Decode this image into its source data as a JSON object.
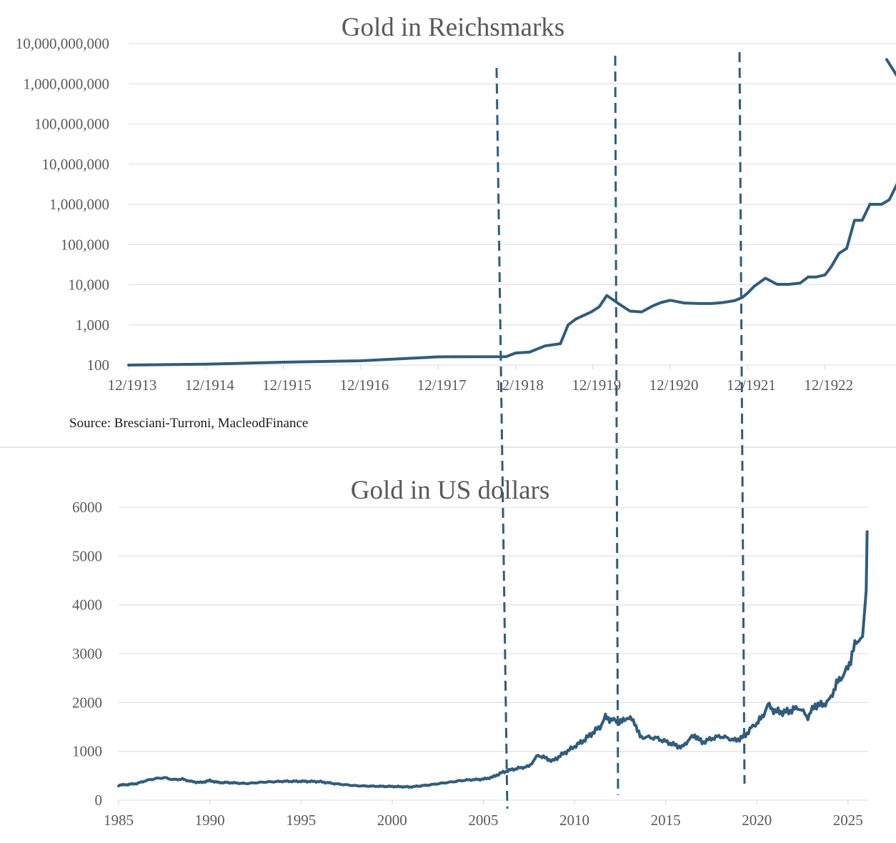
{
  "chart_data": [
    {
      "type": "line",
      "title": "Gold in Reichsmarks",
      "xlabel": "",
      "ylabel": "",
      "yscale": "log",
      "ylim": [
        100,
        10000000000
      ],
      "grid": true,
      "y_ticks": [
        "100",
        "1,000",
        "10,000",
        "100,000",
        "1,000,000",
        "10,000,000",
        "100,000,000",
        "1,000,000,000",
        "10,000,000,000"
      ],
      "x_ticks": [
        "12/1913",
        "12/1914",
        "12/1915",
        "12/1916",
        "12/1917",
        "12/1918",
        "12/1919",
        "12/1920",
        "12/1921",
        "12/1922"
      ],
      "source": "Source: Bresciani-Turroni, MacleodFinance",
      "series": [
        {
          "name": "Gold price in Reichsmarks",
          "color": "#2e5d7e",
          "x": [
            1913.92,
            1914.92,
            1915.92,
            1916.92,
            1917.92,
            1918.8,
            1918.92,
            1919.1,
            1919.3,
            1919.5,
            1919.6,
            1919.7,
            1919.9,
            1920.0,
            1920.1,
            1920.25,
            1920.4,
            1920.55,
            1920.7,
            1920.8,
            1920.92,
            1921.1,
            1921.3,
            1921.45,
            1921.6,
            1921.75,
            1921.85,
            1921.92,
            1922.0,
            1922.15,
            1922.3,
            1922.45,
            1922.6,
            1922.7,
            1922.8,
            1922.92,
            1923.0,
            1923.1,
            1923.2,
            1923.3,
            1923.4,
            1923.5,
            1923.65,
            1923.75,
            1923.92
          ],
          "values": [
            100,
            105,
            118,
            128,
            160,
            162,
            200,
            210,
            300,
            340,
            1000,
            1400,
            2100,
            2800,
            5400,
            3400,
            2200,
            2100,
            3000,
            3600,
            4100,
            3500,
            3400,
            3400,
            3600,
            4000,
            4800,
            6200,
            9000,
            14500,
            10200,
            10200,
            11000,
            15500,
            15500,
            17500,
            28000,
            60000,
            80000,
            400000,
            400000,
            1000000,
            1000000,
            1300000,
            6000000
          ]
        }
      ],
      "annotations": [
        "vertical dashed line near 10/1918",
        "vertical dashed line near 2/1920",
        "vertical dashed line near 11/1921"
      ]
    },
    {
      "type": "line",
      "title": "Gold in US dollars",
      "xlabel": "",
      "ylabel": "",
      "ylim": [
        0,
        6000
      ],
      "xlim": [
        1985,
        2026
      ],
      "grid": true,
      "y_ticks": [
        "0",
        "1000",
        "2000",
        "3000",
        "4000",
        "5000",
        "6000"
      ],
      "x_ticks": [
        "1985",
        "1990",
        "1995",
        "2000",
        "2005",
        "2010",
        "2015",
        "2020",
        "2025"
      ],
      "series": [
        {
          "name": "Gold price in US dollars",
          "color": "#2e5d7e",
          "x": [
            1985.0,
            1985.5,
            1986.0,
            1986.5,
            1987.0,
            1987.5,
            1988.0,
            1988.5,
            1989.0,
            1989.5,
            1990.0,
            1990.5,
            1991.0,
            1992.0,
            1993.0,
            1994.0,
            1995.0,
            1996.0,
            1997.0,
            1998.0,
            1999.0,
            2000.0,
            2001.0,
            2002.0,
            2003.0,
            2004.0,
            2005.0,
            2005.5,
            2006.0,
            2006.5,
            2007.0,
            2007.5,
            2008.0,
            2008.3,
            2008.8,
            2009.3,
            2009.8,
            2010.0,
            2010.5,
            2011.0,
            2011.4,
            2011.7,
            2012.0,
            2012.3,
            2012.6,
            2012.9,
            2013.3,
            2013.6,
            2014.0,
            2014.5,
            2015.0,
            2015.5,
            2015.9,
            2016.3,
            2016.6,
            2017.0,
            2017.5,
            2018.0,
            2018.5,
            2018.8,
            2019.3,
            2019.7,
            2020.0,
            2020.3,
            2020.6,
            2021.0,
            2021.5,
            2022.0,
            2022.3,
            2022.8,
            2023.2,
            2023.6,
            2024.0,
            2024.3,
            2024.6,
            2025.0,
            2025.3,
            2025.6,
            2025.8,
            2026.0,
            2026.05
          ],
          "values": [
            305,
            320,
            340,
            400,
            440,
            460,
            420,
            430,
            380,
            360,
            400,
            360,
            360,
            340,
            370,
            385,
            385,
            380,
            330,
            295,
            285,
            280,
            270,
            310,
            360,
            410,
            430,
            470,
            560,
            620,
            660,
            690,
            920,
            880,
            800,
            930,
            1050,
            1100,
            1220,
            1380,
            1500,
            1700,
            1650,
            1620,
            1600,
            1700,
            1600,
            1290,
            1290,
            1270,
            1200,
            1130,
            1080,
            1250,
            1330,
            1180,
            1260,
            1310,
            1260,
            1220,
            1300,
            1480,
            1580,
            1700,
            1950,
            1820,
            1800,
            1850,
            1900,
            1700,
            1950,
            1950,
            2050,
            2330,
            2500,
            2700,
            3100,
            3300,
            3350,
            4300,
            5500
          ]
        }
      ],
      "annotations": [
        "vertical dashed line near 2006",
        "vertical dashed line near 2012",
        "vertical dashed line near 2019"
      ]
    }
  ]
}
